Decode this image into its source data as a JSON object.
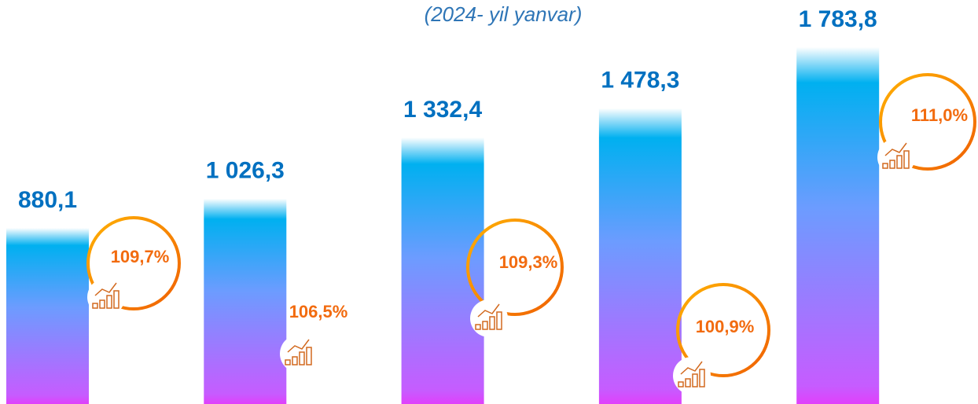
{
  "chart_data": {
    "type": "bar",
    "subtitle": "(2024- yil yanvar)",
    "categories": [
      null,
      null,
      null,
      null,
      null
    ],
    "values": [
      880.1,
      1026.3,
      1332.4,
      1478.3,
      1783.8
    ],
    "value_labels": [
      "880,1",
      "1 026,3",
      "1 332,4",
      "1 478,3",
      "1 783,8"
    ],
    "percent_values": [
      109.7,
      106.5,
      109.3,
      100.9,
      111.0
    ],
    "percent_labels": [
      "109,7%",
      "106,5%",
      "109,3%",
      "100,9%",
      "111,0%"
    ],
    "color": "#00b0f0"
  }
}
